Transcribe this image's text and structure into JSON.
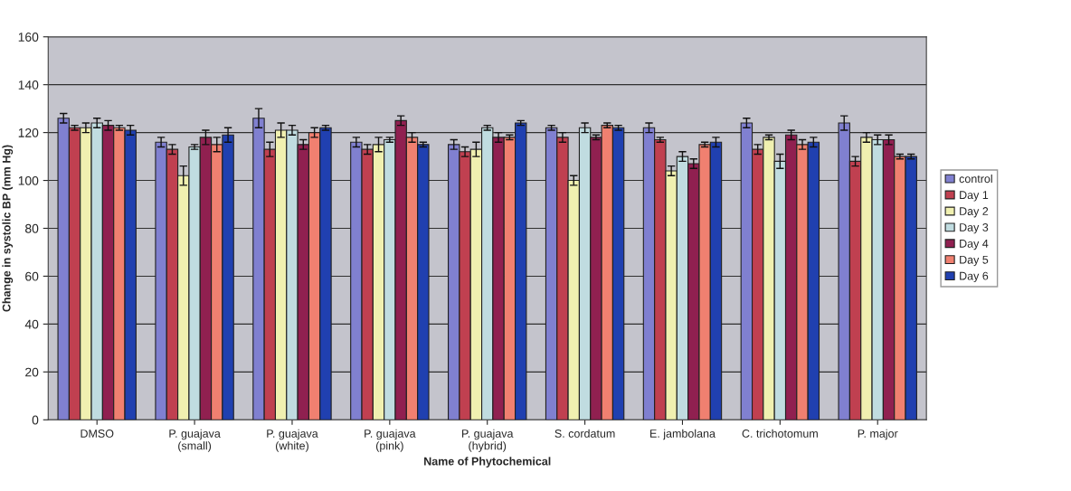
{
  "chart_data": {
    "type": "bar",
    "xlabel": "Name of Phytochemical",
    "ylabel": "Change in systolic BP (mm Hg)",
    "categories": [
      "DMSO",
      "P. guajava\n(small)",
      "P. guajava\n(white)",
      "P. guajava\n(pink)",
      "P. guajava\n(hybrid)",
      "S. cordatum",
      "E. jambolana",
      "C. trichotomum",
      "P. major"
    ],
    "series": [
      {
        "name": "control",
        "color": "#8080d0",
        "values": [
          126,
          116,
          126,
          116,
          115,
          122,
          122,
          124,
          124
        ],
        "errors": [
          2,
          2,
          4,
          2,
          2,
          1,
          2,
          2,
          3
        ]
      },
      {
        "name": "Day 1",
        "color": "#c04050",
        "values": [
          122,
          113,
          113,
          113,
          112,
          118,
          117,
          113,
          108
        ],
        "errors": [
          1,
          2,
          3,
          2,
          2,
          2,
          1,
          2,
          2
        ]
      },
      {
        "name": "Day 2",
        "color": "#f0f0b0",
        "values": [
          122,
          102,
          121,
          115,
          113,
          100,
          104,
          118,
          118
        ],
        "errors": [
          2,
          4,
          3,
          3,
          3,
          2,
          2,
          1,
          2
        ]
      },
      {
        "name": "Day 3",
        "color": "#c0dce0",
        "values": [
          124,
          114,
          121,
          117,
          122,
          122,
          110,
          108,
          117
        ],
        "errors": [
          2,
          1,
          2,
          1,
          1,
          2,
          2,
          3,
          2
        ]
      },
      {
        "name": "Day 4",
        "color": "#902050",
        "values": [
          123,
          118,
          115,
          125,
          118,
          118,
          107,
          119,
          117
        ],
        "errors": [
          2,
          3,
          2,
          2,
          2,
          1,
          2,
          2,
          2
        ]
      },
      {
        "name": "Day 5",
        "color": "#f08070",
        "values": [
          122,
          115,
          120,
          118,
          118,
          123,
          115,
          115,
          110
        ],
        "errors": [
          1,
          3,
          2,
          2,
          1,
          1,
          1,
          2,
          1
        ]
      },
      {
        "name": "Day 6",
        "color": "#2040b0",
        "values": [
          121,
          119,
          122,
          115,
          124,
          122,
          116,
          116,
          110
        ],
        "errors": [
          2,
          3,
          1,
          1,
          1,
          1,
          2,
          2,
          1
        ]
      }
    ],
    "ylim": [
      0,
      160
    ],
    "yticks": [
      0,
      20,
      40,
      60,
      80,
      100,
      120,
      140,
      160
    ],
    "grid": "y",
    "legend": "right"
  }
}
